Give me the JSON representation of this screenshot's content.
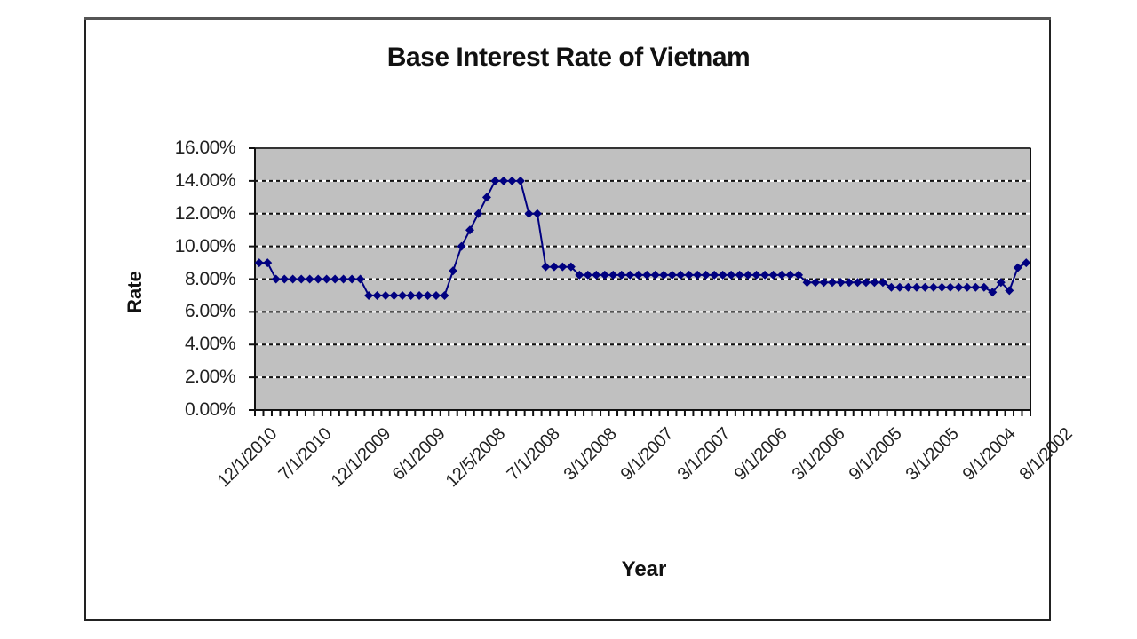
{
  "chart_data": {
    "type": "line",
    "title": "Base Interest Rate of Vietnam",
    "xlabel": "Year",
    "ylabel": "Rate",
    "ylim": [
      0,
      0.16
    ],
    "y_ticks": [
      "0.00%",
      "2.00%",
      "4.00%",
      "6.00%",
      "8.00%",
      "10.00%",
      "12.00%",
      "14.00%",
      "16.00%"
    ],
    "x_tick_labels": [
      "12/1/2010",
      "7/1/2010",
      "12/1/2009",
      "6/1/2009",
      "12/5/2008",
      "7/1/2008",
      "3/1/2008",
      "9/1/2007",
      "3/1/2007",
      "9/1/2006",
      "3/1/2006",
      "9/1/2005",
      "3/1/2005",
      "9/1/2004",
      "8/1/2002"
    ],
    "grid": "horizontal dashed",
    "legend": "none",
    "plot_background": "#c0c0c0",
    "series": [
      {
        "name": "Rate",
        "color": "#000080",
        "marker": "diamond",
        "values": [
          9.0,
          9.0,
          8.0,
          8.0,
          8.0,
          8.0,
          8.0,
          8.0,
          8.0,
          8.0,
          8.0,
          8.0,
          8.0,
          7.0,
          7.0,
          7.0,
          7.0,
          7.0,
          7.0,
          7.0,
          7.0,
          7.0,
          7.0,
          8.5,
          10.0,
          11.0,
          12.0,
          13.0,
          14.0,
          14.0,
          14.0,
          14.0,
          12.0,
          12.0,
          8.75,
          8.75,
          8.75,
          8.75,
          8.25,
          8.25,
          8.25,
          8.25,
          8.25,
          8.25,
          8.25,
          8.25,
          8.25,
          8.25,
          8.25,
          8.25,
          8.25,
          8.25,
          8.25,
          8.25,
          8.25,
          8.25,
          8.25,
          8.25,
          8.25,
          8.25,
          8.25,
          8.25,
          8.25,
          8.25,
          8.25,
          7.8,
          7.8,
          7.8,
          7.8,
          7.8,
          7.8,
          7.8,
          7.8,
          7.8,
          7.8,
          7.5,
          7.5,
          7.5,
          7.5,
          7.5,
          7.5,
          7.5,
          7.5,
          7.5,
          7.5,
          7.5,
          7.5,
          7.2,
          7.8,
          7.3,
          8.7,
          9.0
        ]
      }
    ]
  }
}
